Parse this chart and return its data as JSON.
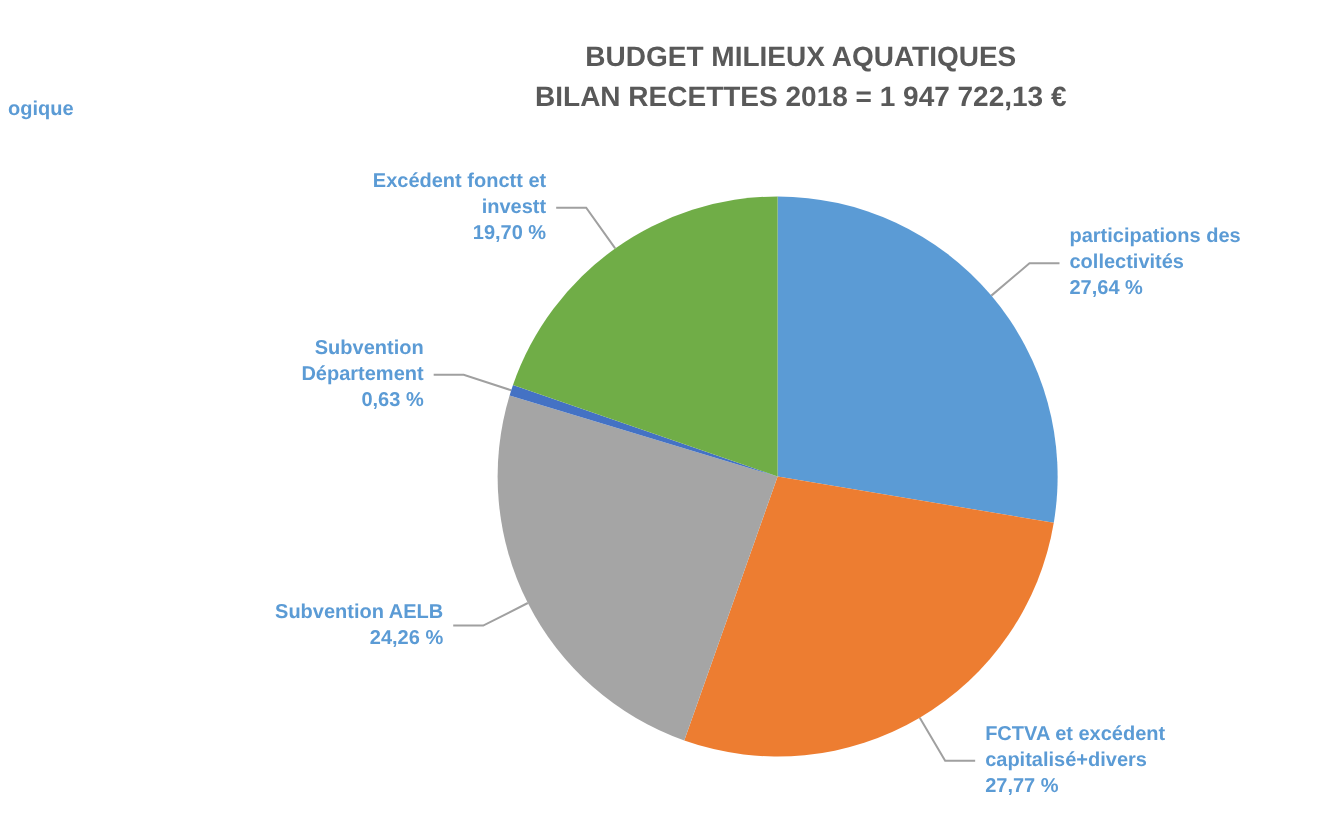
{
  "chart_data": {
    "type": "pie",
    "title": "BUDGET MILIEUX AQUATIQUES",
    "subtitle": "BILAN RECETTES 2018 = 1 947 722,13 €",
    "categories": [
      "participations des collectivités",
      "FCTVA et excédent capitalisé+divers",
      "Subvention AELB",
      "Subvention Département",
      "Excédent fonctt et investt"
    ],
    "values": [
      27.64,
      27.77,
      24.26,
      0.63,
      19.7
    ],
    "value_labels": [
      "27,64 %",
      "27,77 %",
      "24,26 %",
      "0,63 %",
      "19,70 %"
    ],
    "colors": [
      "#5b9bd5",
      "#ed7d31",
      "#a5a5a5",
      "#4472c4",
      "#70ad47"
    ],
    "annotations": [
      "ogique"
    ]
  }
}
